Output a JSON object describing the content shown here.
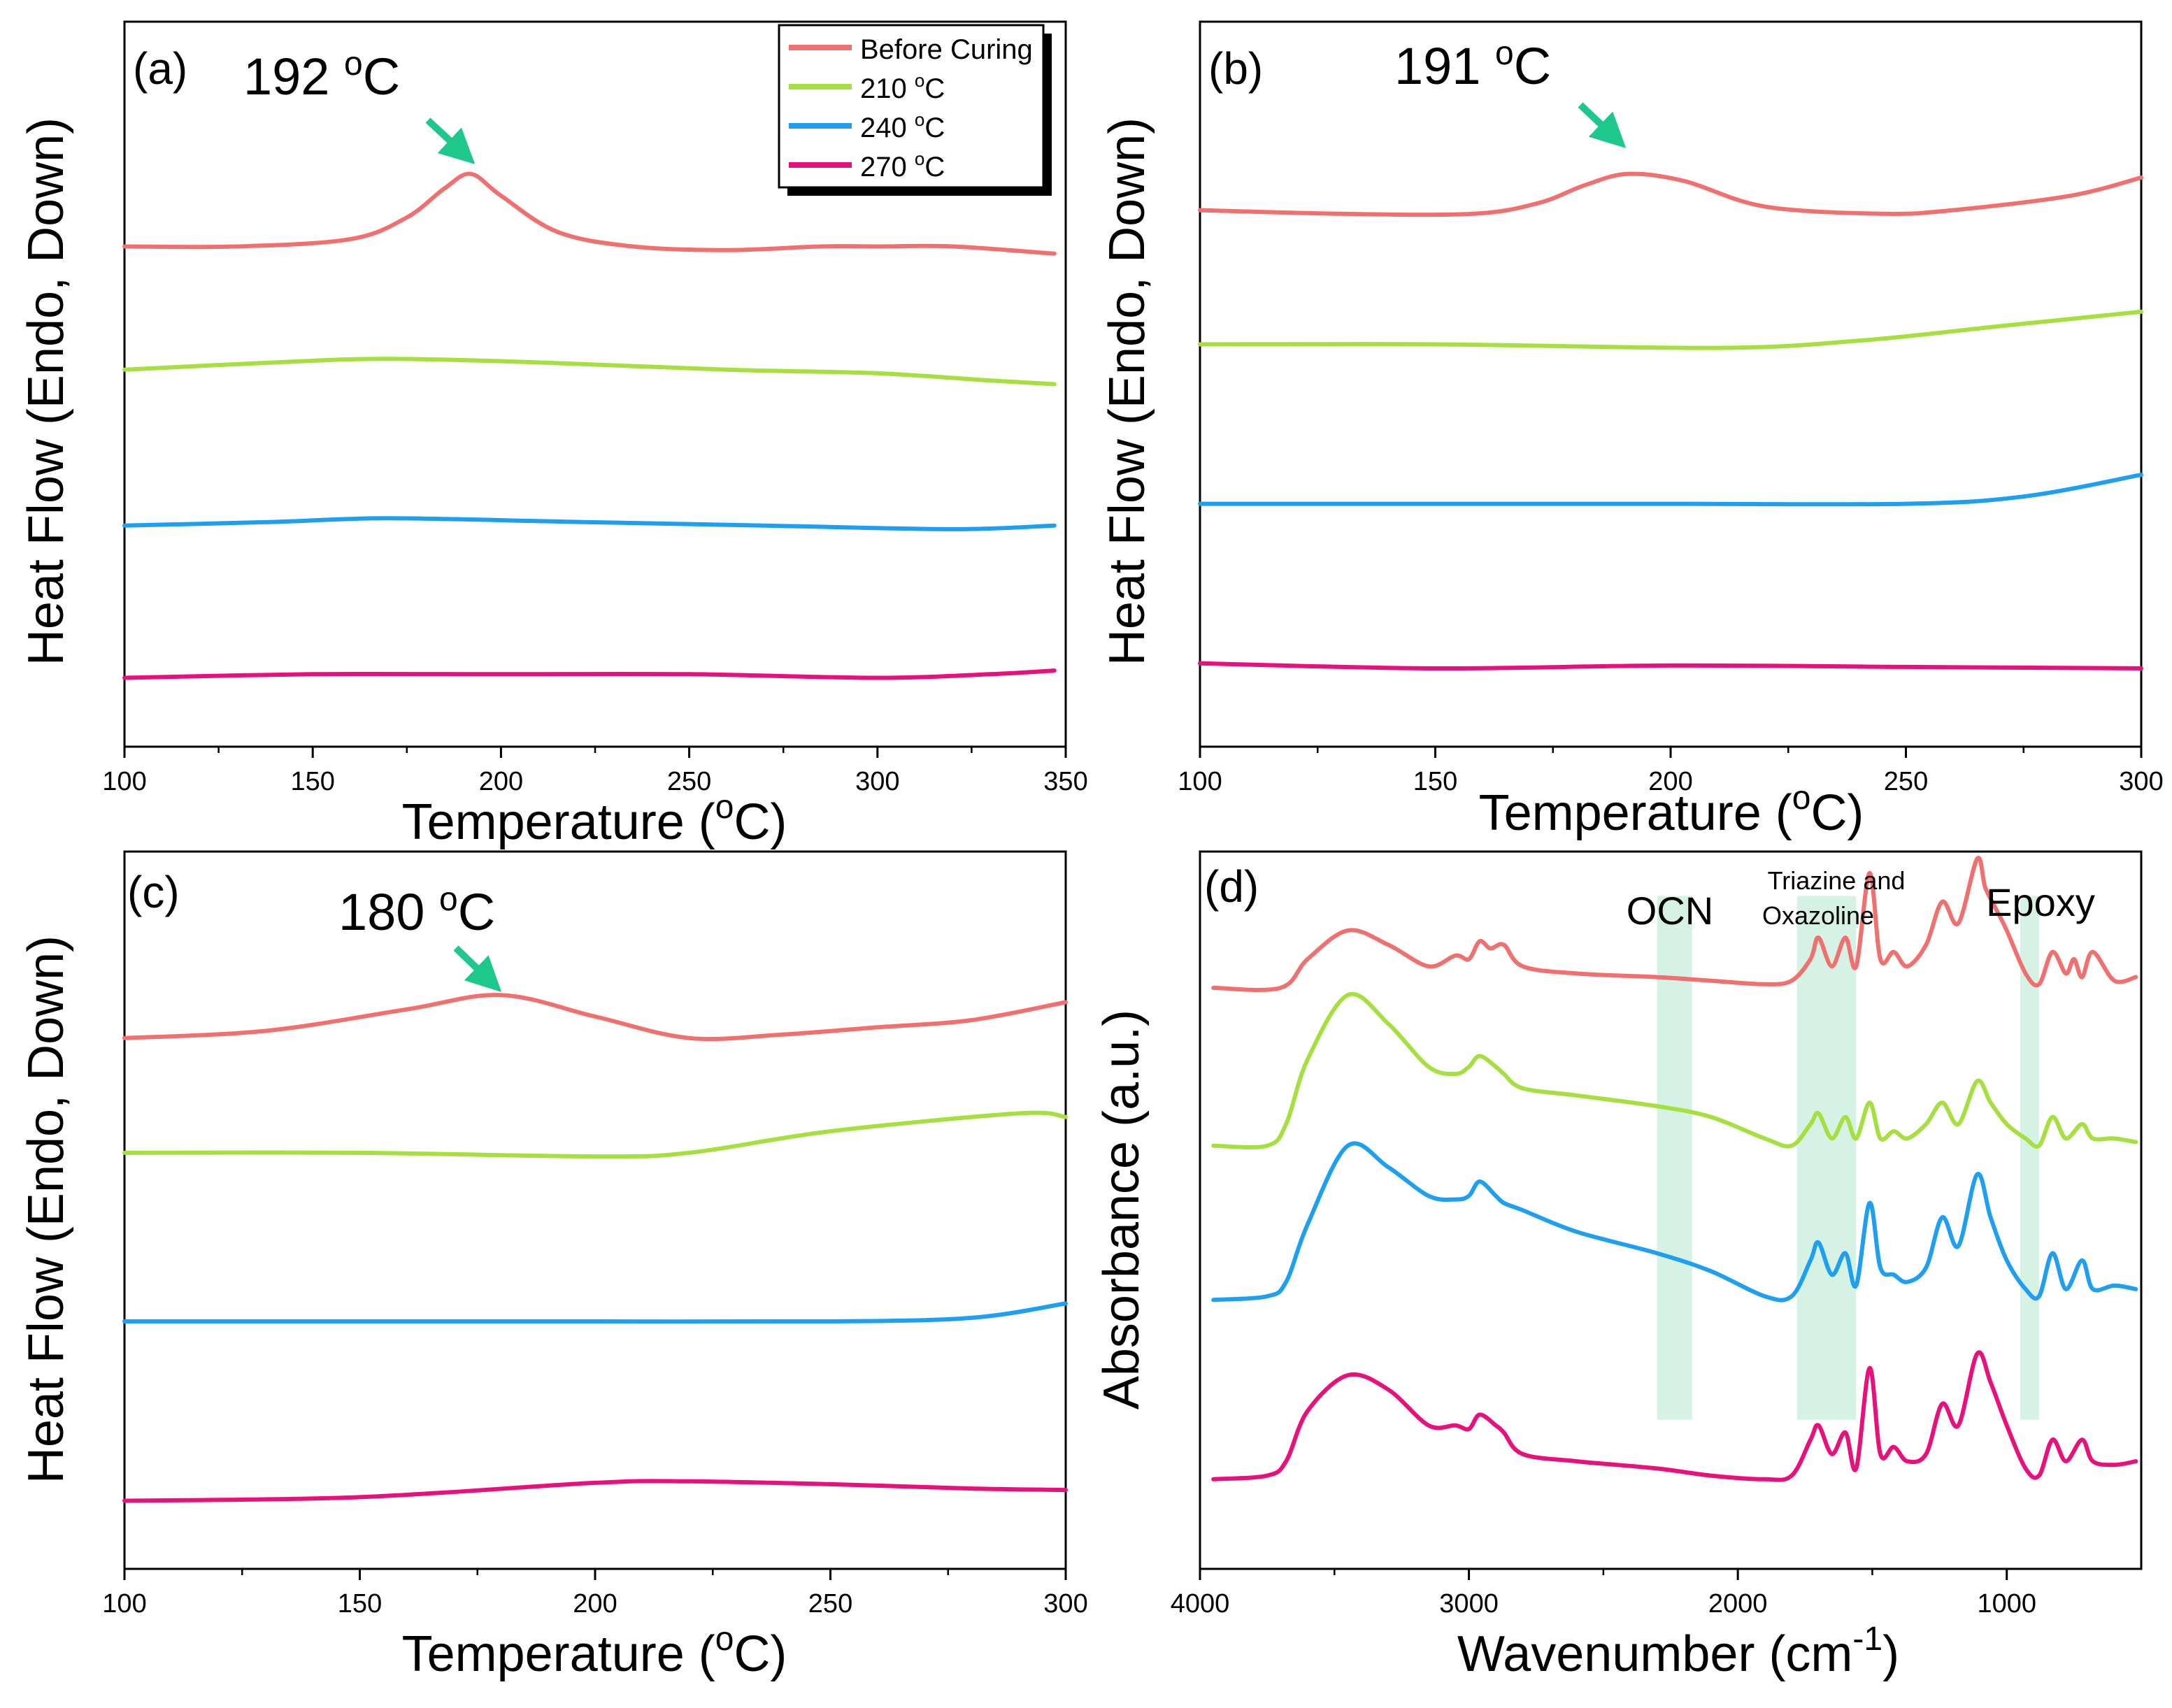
{
  "figure": {
    "colors": {
      "before": "#f07070",
      "t210": "#a6e040",
      "t240": "#1e9ff0",
      "t270": "#e8107a",
      "arrow": "#1ec88c",
      "band": "#c8eedc",
      "axis": "#000000"
    }
  },
  "chart_data": [
    {
      "id": "a",
      "type": "line",
      "panel_label": "(a)",
      "xlabel_main": "Temperature (",
      "xlabel_sup": "o",
      "xlabel_end": "C)",
      "ylabel": "Heat Flow (Endo, Down)",
      "xlim": [
        100,
        350
      ],
      "xticks": [
        100,
        150,
        200,
        250,
        300,
        350
      ],
      "tick_labels": [
        "100",
        "150",
        "200",
        "250",
        "300",
        "350"
      ],
      "peak": {
        "value": "192",
        "unit_sup": "o",
        "unit": "C",
        "x": 192
      },
      "legend": [
        {
          "name": "Before Curing",
          "color_key": "before"
        },
        {
          "name": "210 ",
          "sup": "o",
          "unit": "C",
          "color_key": "t210"
        },
        {
          "name": "240 ",
          "sup": "o",
          "unit": "C",
          "color_key": "t240"
        },
        {
          "name": "270 ",
          "sup": "o",
          "unit": "C",
          "color_key": "t270"
        }
      ],
      "series": [
        {
          "name": "Before Curing",
          "color_key": "before",
          "x": [
            100,
            130,
            160,
            175,
            185,
            192,
            200,
            215,
            235,
            260,
            285,
            300,
            320,
            347
          ],
          "y": [
            0.69,
            0.69,
            0.7,
            0.73,
            0.77,
            0.79,
            0.76,
            0.71,
            0.69,
            0.685,
            0.69,
            0.69,
            0.69,
            0.68
          ]
        },
        {
          "name": "210 oC",
          "color_key": "t210",
          "x": [
            100,
            140,
            170,
            210,
            260,
            300,
            330,
            347
          ],
          "y": [
            0.52,
            0.53,
            0.535,
            0.53,
            0.52,
            0.515,
            0.505,
            0.5
          ]
        },
        {
          "name": "240 oC",
          "color_key": "t240",
          "x": [
            100,
            140,
            170,
            220,
            270,
            320,
            347
          ],
          "y": [
            0.305,
            0.31,
            0.315,
            0.31,
            0.305,
            0.3,
            0.305
          ]
        },
        {
          "name": "270 oC",
          "color_key": "t270",
          "x": [
            100,
            150,
            200,
            250,
            300,
            330,
            347
          ],
          "y": [
            0.095,
            0.1,
            0.1,
            0.1,
            0.095,
            0.1,
            0.105
          ]
        }
      ]
    },
    {
      "id": "b",
      "type": "line",
      "panel_label": "(b)",
      "xlabel_main": "Temperature (",
      "xlabel_sup": "o",
      "xlabel_end": "C)",
      "ylabel": "Heat Flow (Endo, Down)",
      "xlim": [
        100,
        300
      ],
      "xticks": [
        100,
        150,
        200,
        250,
        300
      ],
      "tick_labels": [
        "100",
        "150",
        "200",
        "250",
        "300"
      ],
      "peak": {
        "value": "191",
        "unit_sup": "o",
        "unit": "C",
        "x": 191
      },
      "series": [
        {
          "name": "Before Curing",
          "color_key": "before",
          "x": [
            100,
            130,
            158,
            172,
            182,
            191,
            203,
            220,
            245,
            260,
            285,
            300
          ],
          "y": [
            0.74,
            0.735,
            0.735,
            0.75,
            0.775,
            0.79,
            0.78,
            0.745,
            0.735,
            0.74,
            0.76,
            0.785
          ]
        },
        {
          "name": "210 oC",
          "color_key": "t210",
          "x": [
            100,
            150,
            210,
            240,
            270,
            300
          ],
          "y": [
            0.555,
            0.555,
            0.55,
            0.56,
            0.58,
            0.6
          ]
        },
        {
          "name": "240 oC",
          "color_key": "t240",
          "x": [
            100,
            150,
            200,
            250,
            275,
            300
          ],
          "y": [
            0.335,
            0.335,
            0.335,
            0.335,
            0.345,
            0.375
          ]
        },
        {
          "name": "270 oC",
          "color_key": "t270",
          "x": [
            100,
            150,
            200,
            250,
            300
          ],
          "y": [
            0.115,
            0.108,
            0.112,
            0.11,
            0.108
          ]
        }
      ]
    },
    {
      "id": "c",
      "type": "line",
      "panel_label": "(c)",
      "xlabel_main": "Temperature (",
      "xlabel_sup": "o",
      "xlabel_end": "C)",
      "ylabel": "Heat Flow (Endo, Down)",
      "xlim": [
        100,
        300
      ],
      "xticks": [
        100,
        150,
        200,
        250,
        300
      ],
      "tick_labels": [
        "100",
        "150",
        "200",
        "250",
        "300"
      ],
      "peak": {
        "value": "180",
        "unit_sup": "o",
        "unit": "C",
        "x": 180
      },
      "series": [
        {
          "name": "Before Curing",
          "color_key": "before",
          "x": [
            100,
            130,
            160,
            180,
            200,
            220,
            240,
            260,
            280,
            300
          ],
          "y": [
            0.74,
            0.75,
            0.78,
            0.8,
            0.77,
            0.74,
            0.745,
            0.755,
            0.765,
            0.79
          ]
        },
        {
          "name": "210 oC",
          "color_key": "t210",
          "x": [
            100,
            150,
            200,
            220,
            250,
            290,
            300
          ],
          "y": [
            0.58,
            0.58,
            0.575,
            0.58,
            0.61,
            0.635,
            0.63
          ]
        },
        {
          "name": "240 oC",
          "color_key": "t240",
          "x": [
            100,
            150,
            200,
            250,
            280,
            300
          ],
          "y": [
            0.345,
            0.345,
            0.345,
            0.345,
            0.35,
            0.37
          ]
        },
        {
          "name": "270 oC",
          "color_key": "t270",
          "x": [
            100,
            150,
            200,
            220,
            250,
            280,
            300
          ],
          "y": [
            0.095,
            0.1,
            0.12,
            0.122,
            0.118,
            0.112,
            0.11
          ]
        }
      ]
    },
    {
      "id": "d",
      "type": "line",
      "panel_label": "(d)",
      "xlabel_main": "Wavenumber (cm",
      "xlabel_sup": "-1",
      "xlabel_end": ")",
      "ylabel": "Absorbance (a.u.)",
      "xlim": [
        4000,
        500
      ],
      "xticks": [
        4000,
        3000,
        2000,
        1000
      ],
      "tick_labels": [
        "4000",
        "3000",
        "2000",
        "1000"
      ],
      "bands": [
        {
          "label": "OCN",
          "from": 2300,
          "to": 2170
        },
        {
          "label_line1": "Triazine and",
          "label_line2": "Oxazoline",
          "from": 1780,
          "to": 1560
        },
        {
          "label": "Epoxy",
          "from": 950,
          "to": 880
        }
      ],
      "series": [
        {
          "name": "Before Curing",
          "color_key": "before",
          "x": [
            3950,
            3700,
            3600,
            3450,
            3300,
            3150,
            3050,
            3000,
            2960,
            2920,
            2870,
            2800,
            2600,
            2300,
            2100,
            1900,
            1800,
            1730,
            1700,
            1650,
            1600,
            1560,
            1510,
            1470,
            1420,
            1370,
            1300,
            1240,
            1180,
            1110,
            1080,
            1040,
            1000,
            930,
            880,
            830,
            780,
            750,
            720,
            680,
            600,
            520
          ],
          "y": [
            0.81,
            0.81,
            0.85,
            0.89,
            0.87,
            0.84,
            0.855,
            0.85,
            0.875,
            0.865,
            0.87,
            0.84,
            0.83,
            0.825,
            0.82,
            0.815,
            0.82,
            0.85,
            0.88,
            0.84,
            0.88,
            0.84,
            0.97,
            0.85,
            0.86,
            0.84,
            0.87,
            0.93,
            0.9,
            0.99,
            0.95,
            0.92,
            0.89,
            0.83,
            0.815,
            0.86,
            0.83,
            0.85,
            0.825,
            0.86,
            0.82,
            0.825
          ]
        },
        {
          "name": "210 oC",
          "color_key": "t210",
          "x": [
            3950,
            3750,
            3680,
            3600,
            3450,
            3300,
            3150,
            3050,
            3000,
            2960,
            2900,
            2870,
            2800,
            2600,
            2300,
            2100,
            1900,
            1800,
            1730,
            1700,
            1650,
            1600,
            1560,
            1510,
            1470,
            1420,
            1370,
            1300,
            1240,
            1180,
            1110,
            1060,
            1000,
            930,
            880,
            830,
            780,
            720,
            680,
            600,
            520
          ],
          "y": [
            0.59,
            0.59,
            0.62,
            0.71,
            0.8,
            0.76,
            0.7,
            0.69,
            0.7,
            0.715,
            0.7,
            0.69,
            0.67,
            0.66,
            0.645,
            0.63,
            0.6,
            0.59,
            0.62,
            0.635,
            0.6,
            0.63,
            0.6,
            0.65,
            0.6,
            0.61,
            0.6,
            0.62,
            0.65,
            0.62,
            0.68,
            0.65,
            0.62,
            0.6,
            0.59,
            0.63,
            0.6,
            0.62,
            0.6,
            0.6,
            0.595
          ]
        },
        {
          "name": "240 oC",
          "color_key": "t240",
          "x": [
            3950,
            3750,
            3680,
            3600,
            3450,
            3300,
            3150,
            3050,
            3000,
            2960,
            2900,
            2870,
            2800,
            2600,
            2300,
            2100,
            1900,
            1800,
            1730,
            1700,
            1650,
            1600,
            1560,
            1510,
            1470,
            1420,
            1370,
            1300,
            1240,
            1180,
            1110,
            1060,
            1000,
            930,
            880,
            830,
            780,
            720,
            680,
            600,
            520
          ],
          "y": [
            0.375,
            0.38,
            0.4,
            0.48,
            0.59,
            0.56,
            0.52,
            0.515,
            0.52,
            0.54,
            0.52,
            0.51,
            0.5,
            0.47,
            0.44,
            0.415,
            0.38,
            0.38,
            0.43,
            0.455,
            0.41,
            0.44,
            0.395,
            0.51,
            0.42,
            0.41,
            0.4,
            0.42,
            0.49,
            0.45,
            0.55,
            0.49,
            0.43,
            0.39,
            0.38,
            0.44,
            0.39,
            0.43,
            0.39,
            0.395,
            0.39
          ]
        },
        {
          "name": "270 oC",
          "color_key": "t270",
          "x": [
            3950,
            3750,
            3680,
            3600,
            3450,
            3300,
            3150,
            3050,
            3000,
            2960,
            2900,
            2870,
            2800,
            2600,
            2300,
            2100,
            1900,
            1800,
            1730,
            1700,
            1650,
            1600,
            1560,
            1510,
            1470,
            1420,
            1370,
            1300,
            1240,
            1180,
            1110,
            1060,
            1000,
            930,
            880,
            830,
            780,
            720,
            680,
            600,
            520
          ],
          "y": [
            0.125,
            0.13,
            0.15,
            0.22,
            0.27,
            0.25,
            0.2,
            0.2,
            0.195,
            0.215,
            0.2,
            0.19,
            0.16,
            0.15,
            0.14,
            0.13,
            0.125,
            0.13,
            0.18,
            0.2,
            0.16,
            0.19,
            0.14,
            0.28,
            0.16,
            0.17,
            0.15,
            0.16,
            0.23,
            0.2,
            0.3,
            0.26,
            0.2,
            0.14,
            0.13,
            0.18,
            0.15,
            0.18,
            0.15,
            0.145,
            0.15
          ]
        }
      ]
    }
  ]
}
